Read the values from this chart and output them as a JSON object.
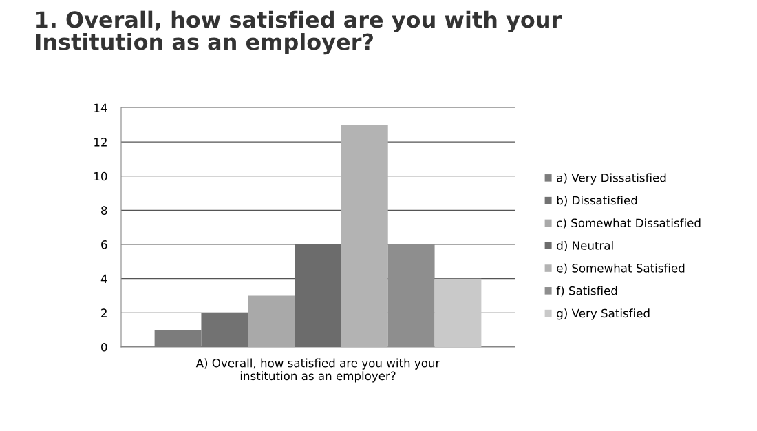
{
  "chart_data": {
    "type": "bar",
    "title": "1. Overall, how satisfied are you with your\nInstitution as an employer?",
    "categories": [
      "A) Overall, how satisfied are you with your\ninstitution as an employer?"
    ],
    "series": [
      {
        "name": "a) Very Dissatisfied",
        "color": "#7c7c7c",
        "values": [
          1
        ]
      },
      {
        "name": "b) Dissatisfied",
        "color": "#727272",
        "values": [
          2
        ]
      },
      {
        "name": "c) Somewhat Dissatisfied",
        "color": "#a9a9a9",
        "values": [
          3
        ]
      },
      {
        "name": "d) Neutral",
        "color": "#6c6c6c",
        "values": [
          6
        ]
      },
      {
        "name": "e) Somewhat Satisfied",
        "color": "#b3b3b3",
        "values": [
          13
        ]
      },
      {
        "name": "f) Satisfied",
        "color": "#8e8e8e",
        "values": [
          6
        ]
      },
      {
        "name": "g) Very Satisfied",
        "color": "#c9c9c9",
        "values": [
          4
        ]
      }
    ],
    "ylim": [
      0,
      14
    ],
    "yticks": [
      0,
      2,
      4,
      6,
      8,
      10,
      12,
      14
    ],
    "grid": "y",
    "legend": "right"
  }
}
